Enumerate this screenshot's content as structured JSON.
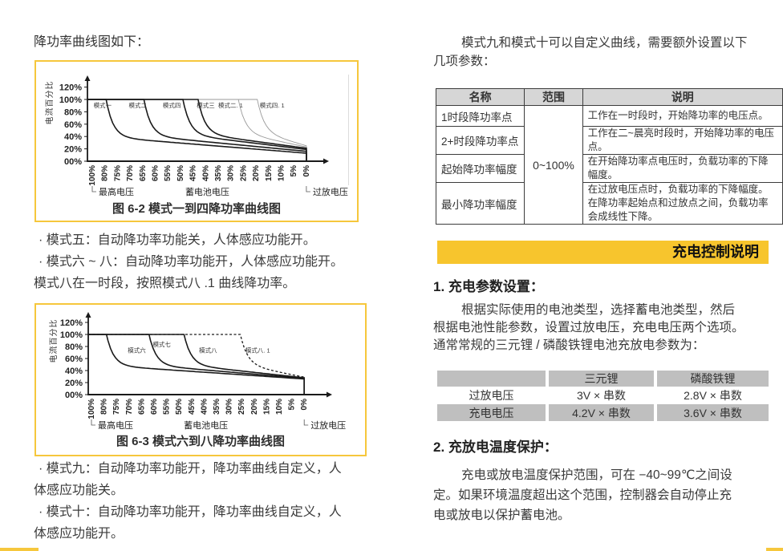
{
  "colors": {
    "accent_yellow": "#F6C73C",
    "banner_yellow": "#F7C52D",
    "table_header_gray": "#D6D6D6",
    "table_row_gray": "#BFBFBF",
    "curve_color": "#1A1A1A"
  },
  "left_column": {
    "intro": "降功率曲线图如下：",
    "mode_notes_mid": [
      "·  模式五：自动降功率功能关，人体感应功能开。",
      "·  模式六 ~ 八：自动降功率功能开，人体感应功能开。",
      "模式八在一时段，按照模式八 .1 曲线降功率。"
    ],
    "mode_notes_bottom": [
      "·  模式九：自动降功率功能开，降功率曲线自定义，人",
      "体感应功能关。",
      "·  模式十：自动降功率功能开，降功率曲线自定义，人",
      "体感应功能开。"
    ]
  },
  "right_column": {
    "intro_lines": [
      "模式九和模式十可以自定义曲线，需要额外设置以下",
      "几项参数："
    ],
    "param_table": {
      "headers": [
        "名称",
        "范围",
        "说明"
      ],
      "merged_range": "0~100%",
      "rows": [
        {
          "name": "1时段降功率点",
          "desc": "工作在一时段时，开始降功率的电压点。"
        },
        {
          "name": "2+时段降功率点",
          "desc": "工作在二~晨亮时段时，开始降功率的电压点。"
        },
        {
          "name": "起始降功率幅度",
          "desc": "在开始降功率点电压时，负载功率的下降幅度。"
        },
        {
          "name": "最小降功率幅度",
          "desc": "在过放电压点时，负载功率的下降幅度。在降功率起始点和过放点之间，负载功率会成线性下降。"
        }
      ]
    },
    "banner": "充电控制说明",
    "section1_title": "1. 充电参数设置：",
    "section1_lines": [
      "根据实际使用的电池类型，选择蓄电池类型，然后",
      "根据电池性能参数，设置过放电压，充电电压两个选项。",
      "通常常规的三元锂 / 磷酸铁锂电池充放电参数为："
    ],
    "battery_table": {
      "headers": [
        "",
        "三元锂",
        "磷酸铁锂"
      ],
      "rows": [
        {
          "name": "过放电压",
          "ternary": "3V × 串数",
          "lifepo4": "2.8V × 串数"
        },
        {
          "name": "充电电压",
          "ternary": "4.2V × 串数",
          "lifepo4": "3.6V × 串数"
        }
      ]
    },
    "section2_title": "2. 充放电温度保护：",
    "section2_lines": [
      "充电或放电温度保护范围，可在 −40~99℃之间设",
      "定。如果环境温度超出这个范围，控制器会自动停止充",
      "电或放电以保护蓄电池。"
    ]
  },
  "chart_data": [
    {
      "type": "line",
      "title": "图 6-2 模式一到四降功率曲线图",
      "ylabel": "电流百分比",
      "xlabel": "蓄电池电压",
      "x_start_label": "最高电压",
      "x_end_label": "过放电压",
      "ylim": [
        0,
        130
      ],
      "y_ticks": [
        "120%",
        "100%",
        "80%",
        "60%",
        "40%",
        "20%",
        "00%"
      ],
      "y_tick_values": [
        120,
        100,
        80,
        60,
        40,
        20,
        0
      ],
      "x_ticks": [
        "100%",
        "80%",
        "75%",
        "70%",
        "65%",
        "60%",
        "55%",
        "50%",
        "45%",
        "40%",
        "35%",
        "30%",
        "25%",
        "20%",
        "15%",
        "10%",
        "5%",
        "0%"
      ],
      "series": [
        {
          "name": "模式一",
          "drop_tick": 1.1,
          "end_value": 13,
          "style": "solid",
          "label_tick": 0.1,
          "label_value": 87
        },
        {
          "name": "模式二",
          "drop_tick": 4.1,
          "end_value": 16,
          "style": "solid",
          "label_tick": 2.9,
          "label_value": 87
        },
        {
          "name": "模式四",
          "drop_tick": 7.2,
          "end_value": 19,
          "style": "solid",
          "label_tick": 5.6,
          "label_value": 87
        },
        {
          "name": "模式三",
          "drop_tick": 8.4,
          "end_value": 21,
          "style": "solid",
          "label_tick": 8.3,
          "label_value": 87
        },
        {
          "name": "模式二. 1",
          "drop_tick": 11.6,
          "end_value": 23,
          "style": "thin",
          "label_tick": 10.0,
          "label_value": 87
        },
        {
          "name": "模式四. 1",
          "drop_tick": 13.1,
          "end_value": 25,
          "style": "thin",
          "label_tick": 13.3,
          "label_value": 87
        }
      ]
    },
    {
      "type": "line",
      "title": "图 6-3 模式六到八降功率曲线图",
      "ylabel": "电流百分比",
      "xlabel": "蓄电池电压",
      "x_start_label": "最高电压",
      "x_end_label": "过放电压",
      "ylim": [
        0,
        130
      ],
      "y_ticks": [
        "120%",
        "100%",
        "80%",
        "60%",
        "40%",
        "20%",
        "00%"
      ],
      "y_tick_values": [
        120,
        100,
        80,
        60,
        40,
        20,
        0
      ],
      "x_ticks": [
        "100%",
        "80%",
        "75%",
        "70%",
        "65%",
        "60%",
        "55%",
        "50%",
        "45%",
        "40%",
        "35%",
        "30%",
        "25%",
        "20%",
        "15%",
        "10%",
        "5%",
        "0%"
      ],
      "series": [
        {
          "name": "模式六",
          "drop_tick": 1.2,
          "end_value": 26,
          "style": "solid",
          "label_tick": 2.9,
          "label_value": 70
        },
        {
          "name": "模式七",
          "drop_tick": 4.6,
          "end_value": 27,
          "style": "solid",
          "label_tick": 4.9,
          "label_value": 80
        },
        {
          "name": "模式八",
          "drop_tick": 7.4,
          "end_value": 28,
          "style": "solid",
          "label_tick": 8.6,
          "label_value": 70
        },
        {
          "name": "模式八. 1",
          "drop_tick": 11.9,
          "end_value": 29,
          "style": "dashed",
          "label_tick": 12.3,
          "label_value": 70
        }
      ]
    }
  ]
}
